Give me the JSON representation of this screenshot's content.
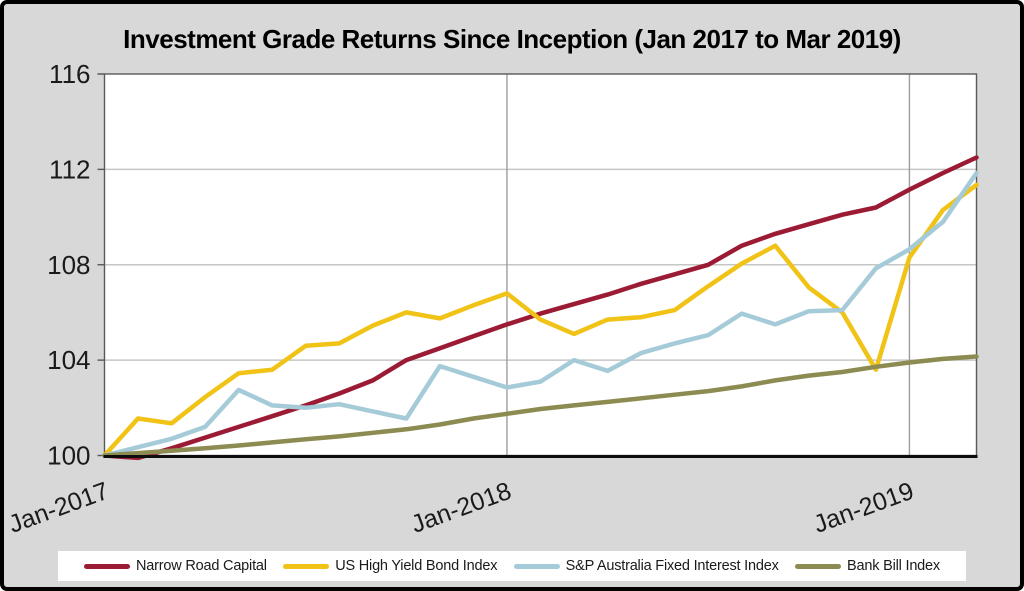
{
  "title": "Investment Grade Returns Since Inception (Jan 2017 to Mar 2019)",
  "colors": {
    "background": "#d8d8d8",
    "plot_background": "#ffffff",
    "outer_border": "#000000",
    "horizontal_gridline": "#c6c6c6",
    "vertical_gridline": "#9e9e9e",
    "plot_border": "#595959",
    "axis_line": "#0d0d0d",
    "tick_label": "#1a1a1a"
  },
  "chart_data": {
    "type": "line",
    "title": "Investment Grade Returns Since Inception (Jan 2017 to Mar 2019)",
    "xlabel": "",
    "ylabel": "",
    "ylim": [
      100,
      116
    ],
    "yticks": [
      100,
      104,
      108,
      112,
      116
    ],
    "grid": {
      "horizontal_at": [
        104,
        108,
        112
      ],
      "vertical_at_indices": [
        12,
        24
      ]
    },
    "legend_position": "bottom",
    "xtick_shown": {
      "indices": [
        0,
        12,
        24
      ],
      "labels": [
        "Jan-2017",
        "Jan-2018",
        "Jan-2019"
      ],
      "rotation_deg": -20
    },
    "x_categories": [
      "Jan-2017",
      "Feb-2017",
      "Mar-2017",
      "Apr-2017",
      "May-2017",
      "Jun-2017",
      "Jul-2017",
      "Aug-2017",
      "Sep-2017",
      "Oct-2017",
      "Nov-2017",
      "Dec-2017",
      "Jan-2018",
      "Feb-2018",
      "Mar-2018",
      "Apr-2018",
      "May-2018",
      "Jun-2018",
      "Jul-2018",
      "Aug-2018",
      "Sep-2018",
      "Oct-2018",
      "Nov-2018",
      "Dec-2018",
      "Jan-2019",
      "Feb-2019",
      "Mar-2019"
    ],
    "series": [
      {
        "name": "Narrow Road Capital",
        "color": "#9b1b34",
        "values": [
          100.0,
          99.9,
          100.3,
          100.75,
          101.2,
          101.65,
          102.1,
          102.6,
          103.15,
          104.0,
          104.5,
          105.0,
          105.5,
          105.95,
          106.35,
          106.75,
          107.2,
          107.6,
          108.0,
          108.8,
          109.3,
          109.7,
          110.1,
          110.4,
          111.15,
          111.85,
          112.5
        ]
      },
      {
        "name": "US High Yield Bond Index",
        "color": "#f0c316",
        "values": [
          100.0,
          101.55,
          101.35,
          102.45,
          103.45,
          103.6,
          104.6,
          104.7,
          105.45,
          106.0,
          105.75,
          106.3,
          106.8,
          105.7,
          105.1,
          105.7,
          105.8,
          106.1,
          107.1,
          108.05,
          108.8,
          107.05,
          106.0,
          103.6,
          108.3,
          110.3,
          111.35
        ]
      },
      {
        "name": "S&P Australia Fixed Interest Index",
        "color": "#a6cbd8",
        "values": [
          100.0,
          100.35,
          100.7,
          101.2,
          102.75,
          102.1,
          102.0,
          102.15,
          101.85,
          101.55,
          103.75,
          103.3,
          102.85,
          103.1,
          104.0,
          103.55,
          104.3,
          104.7,
          105.05,
          105.95,
          105.5,
          106.05,
          106.1,
          107.85,
          108.65,
          109.8,
          111.85
        ]
      },
      {
        "name": "Bank Bill Index",
        "color": "#8c8b51",
        "values": [
          100.0,
          100.1,
          100.2,
          100.3,
          100.42,
          100.55,
          100.68,
          100.8,
          100.95,
          101.1,
          101.3,
          101.55,
          101.75,
          101.95,
          102.1,
          102.25,
          102.4,
          102.55,
          102.7,
          102.9,
          103.15,
          103.35,
          103.5,
          103.72,
          103.9,
          104.05,
          104.15
        ]
      }
    ]
  }
}
